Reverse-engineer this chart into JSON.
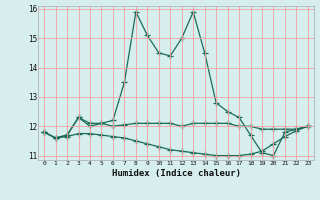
{
  "xlabel": "Humidex (Indice chaleur)",
  "x_values": [
    0,
    1,
    2,
    3,
    4,
    5,
    6,
    7,
    8,
    9,
    10,
    11,
    12,
    13,
    14,
    15,
    16,
    17,
    18,
    19,
    20,
    21,
    22,
    23
  ],
  "line1": [
    11.8,
    11.6,
    11.7,
    12.3,
    12.0,
    12.1,
    12.2,
    13.5,
    15.9,
    15.1,
    14.5,
    14.4,
    15.0,
    15.9,
    14.5,
    12.8,
    12.5,
    12.3,
    11.7,
    11.1,
    11.0,
    11.8,
    11.9,
    12.0
  ],
  "line2": [
    11.8,
    11.6,
    11.7,
    12.3,
    12.1,
    12.1,
    12.0,
    12.05,
    12.1,
    12.1,
    12.1,
    12.1,
    12.0,
    12.1,
    12.1,
    12.1,
    12.1,
    12.0,
    12.0,
    11.9,
    11.9,
    11.9,
    11.9,
    12.0
  ],
  "line3": [
    11.8,
    11.6,
    11.65,
    11.75,
    11.75,
    11.7,
    11.65,
    11.6,
    11.5,
    11.4,
    11.3,
    11.2,
    11.15,
    11.1,
    11.05,
    11.0,
    11.0,
    11.0,
    11.05,
    11.15,
    11.4,
    11.65,
    11.85,
    12.0
  ],
  "line_color": "#1b6b5a",
  "bg_color": "#d6eeee",
  "grid_color": "#f5a0a0",
  "ylim_min": 10.85,
  "ylim_max": 16.1,
  "xlim_min": -0.5,
  "xlim_max": 23.5,
  "yticks": [
    11,
    12,
    13,
    14,
    15,
    16
  ],
  "xticks": [
    0,
    1,
    2,
    3,
    4,
    5,
    6,
    7,
    8,
    9,
    10,
    11,
    12,
    13,
    14,
    15,
    16,
    17,
    18,
    19,
    20,
    21,
    22,
    23
  ]
}
